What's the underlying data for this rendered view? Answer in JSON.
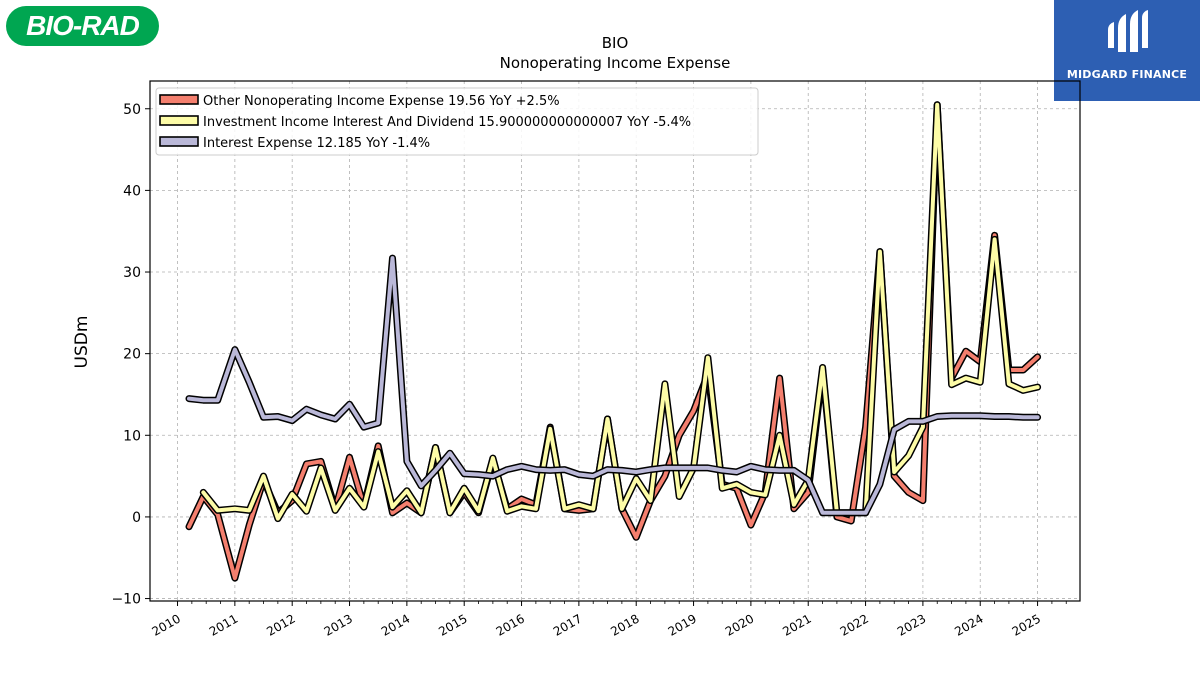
{
  "logos": {
    "left_text": "BIO-RAD",
    "right_text": "MIDGARD FINANCE",
    "left_color": "#00a651",
    "right_color": "#2d5fb3"
  },
  "chart_data": {
    "type": "line",
    "title": "BIO",
    "subtitle": "Nonoperating Income Expense",
    "xlabel": "",
    "ylabel": "USDm",
    "xlim": [
      2009.52,
      2025.74
    ],
    "ylim": [
      -10.3,
      53.4
    ],
    "x_ticks": [
      "2010",
      "2011",
      "2012",
      "2013",
      "2014",
      "2015",
      "2016",
      "2017",
      "2018",
      "2019",
      "2020",
      "2021",
      "2022",
      "2023",
      "2024",
      "2025"
    ],
    "y_ticks": [
      -10,
      0,
      10,
      20,
      30,
      40,
      50
    ],
    "grid": true,
    "legend_position": "top-left",
    "series": [
      {
        "name": "Other Nonoperating Income Expense  19.56 YoY +2.5%",
        "color": "#f47f6e",
        "x": [
          2010.2,
          2010.45,
          2010.7,
          2011.0,
          2011.25,
          2011.5,
          2011.75,
          2012.0,
          2012.25,
          2012.5,
          2012.75,
          2013.0,
          2013.25,
          2013.5,
          2013.75,
          2014.0,
          2014.25,
          2014.5,
          2014.75,
          2015.0,
          2015.25,
          2015.5,
          2015.75,
          2016.0,
          2016.25,
          2016.5,
          2016.75,
          2017.0,
          2017.25,
          2017.5,
          2017.75,
          2018.0,
          2018.25,
          2018.5,
          2018.75,
          2019.0,
          2019.25,
          2019.5,
          2019.75,
          2020.0,
          2020.25,
          2020.5,
          2020.75,
          2021.0,
          2021.25,
          2021.5,
          2021.75,
          2022.0,
          2022.25,
          2022.5,
          2022.75,
          2023.0,
          2023.25,
          2023.5,
          2023.75,
          2024.0,
          2024.25,
          2024.5,
          2024.75,
          2025.0
        ],
        "values": [
          -1.2,
          2.5,
          0.3,
          -7.5,
          -1.0,
          4.5,
          0.5,
          2.0,
          6.5,
          6.8,
          1.0,
          7.3,
          1.3,
          8.7,
          0.5,
          1.7,
          0.5,
          8.5,
          0.5,
          3.0,
          0.5,
          7.0,
          1.0,
          2.2,
          1.5,
          11.0,
          1.0,
          0.8,
          1.0,
          12.0,
          1.0,
          -2.5,
          2.0,
          5.0,
          10.0,
          13.0,
          17.5,
          4.0,
          3.5,
          -1.0,
          3.0,
          17.0,
          1.0,
          3.0,
          18.0,
          0.0,
          -0.5,
          11.0,
          32.5,
          5.0,
          3.0,
          2.0,
          50.5,
          17.0,
          20.3,
          19.0,
          34.5,
          18.0,
          18.0,
          19.6
        ]
      },
      {
        "name": "Investment Income Interest And Dividend  15.900000000000007 YoY -5.4%",
        "color": "#fdfca7",
        "x": [
          2010.2,
          2010.45,
          2010.7,
          2011.0,
          2011.25,
          2011.5,
          2011.75,
          2012.0,
          2012.25,
          2012.5,
          2012.75,
          2013.0,
          2013.25,
          2013.5,
          2013.75,
          2014.0,
          2014.25,
          2014.5,
          2014.75,
          2015.0,
          2015.25,
          2015.5,
          2015.75,
          2016.0,
          2016.25,
          2016.5,
          2016.75,
          2017.0,
          2017.25,
          2017.5,
          2017.75,
          2018.0,
          2018.25,
          2018.5,
          2018.75,
          2019.0,
          2019.25,
          2019.5,
          2019.75,
          2020.0,
          2020.25,
          2020.5,
          2020.75,
          2021.0,
          2021.25,
          2021.5,
          2021.75,
          2022.0,
          2022.25,
          2022.5,
          2022.75,
          2023.0,
          2023.25,
          2023.5,
          2023.75,
          2024.0,
          2024.25,
          2024.5,
          2024.75,
          2025.0
        ],
        "values": [
          null,
          3.0,
          0.8,
          1.0,
          0.8,
          5.0,
          -0.2,
          2.8,
          0.7,
          6.0,
          0.8,
          3.5,
          1.2,
          8.0,
          1.2,
          3.2,
          0.5,
          8.5,
          0.5,
          3.5,
          0.7,
          7.2,
          0.7,
          1.3,
          1.0,
          10.8,
          1.0,
          1.5,
          1.0,
          12.0,
          1.0,
          4.7,
          2.0,
          16.3,
          2.5,
          6.0,
          19.5,
          3.5,
          4.0,
          3.0,
          2.7,
          10.0,
          1.5,
          4.5,
          18.3,
          0.5,
          0.5,
          0.5,
          32.5,
          5.5,
          7.5,
          11.0,
          50.5,
          16.2,
          17.0,
          16.5,
          34.0,
          16.3,
          15.5,
          15.9
        ]
      },
      {
        "name": "Interest Expense  12.185 YoY -1.4%",
        "color": "#bab8d8",
        "x": [
          2010.2,
          2010.45,
          2010.7,
          2011.0,
          2011.25,
          2011.5,
          2011.75,
          2012.0,
          2012.25,
          2012.5,
          2012.75,
          2013.0,
          2013.25,
          2013.5,
          2013.75,
          2014.0,
          2014.25,
          2014.5,
          2014.75,
          2015.0,
          2015.25,
          2015.5,
          2015.75,
          2016.0,
          2016.25,
          2016.5,
          2016.75,
          2017.0,
          2017.25,
          2017.5,
          2017.75,
          2018.0,
          2018.25,
          2018.5,
          2018.75,
          2019.0,
          2019.25,
          2019.5,
          2019.75,
          2020.0,
          2020.25,
          2020.5,
          2020.75,
          2021.0,
          2021.25,
          2021.5,
          2021.75,
          2022.0,
          2022.25,
          2022.5,
          2022.75,
          2023.0,
          2023.25,
          2023.5,
          2023.75,
          2024.0,
          2024.25,
          2024.5,
          2024.75,
          2025.0
        ],
        "values": [
          14.5,
          14.3,
          14.3,
          20.5,
          16.5,
          12.2,
          12.3,
          11.8,
          13.2,
          12.5,
          12.0,
          13.8,
          11.0,
          11.5,
          31.7,
          6.8,
          3.8,
          5.7,
          7.8,
          5.3,
          5.2,
          5.0,
          5.8,
          6.2,
          5.8,
          5.7,
          5.8,
          5.2,
          5.0,
          5.8,
          5.7,
          5.5,
          5.8,
          6.0,
          6.0,
          6.0,
          6.0,
          5.7,
          5.5,
          6.2,
          5.8,
          5.7,
          5.7,
          4.5,
          0.5,
          0.5,
          0.5,
          0.5,
          4.0,
          10.7,
          11.7,
          11.7,
          12.3,
          12.4,
          12.4,
          12.4,
          12.3,
          12.3,
          12.2,
          12.2
        ]
      }
    ]
  }
}
